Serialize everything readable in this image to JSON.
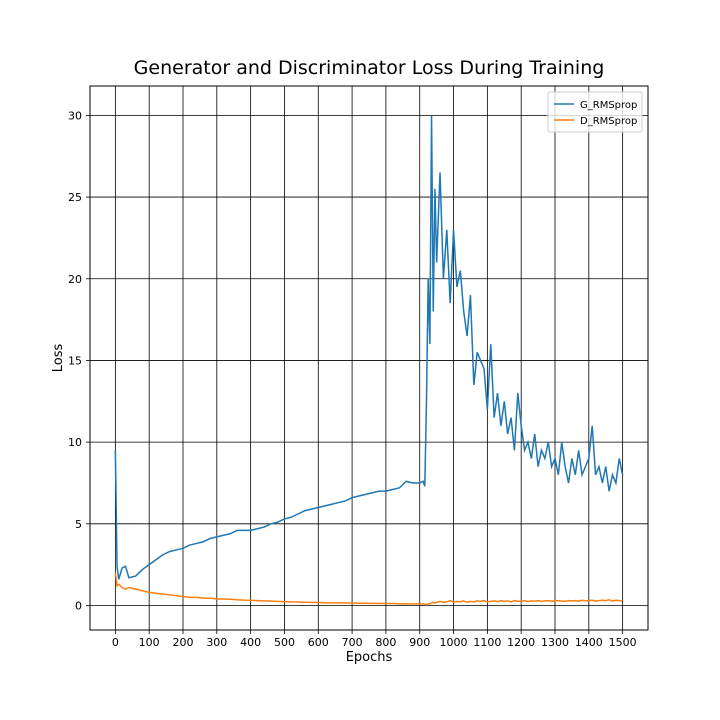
{
  "chart_data": {
    "type": "line",
    "title": "Generator and Discriminator Loss During Training",
    "x_label": "Epochs",
    "y_label": "Loss",
    "x": [
      0,
      5,
      10,
      20,
      30,
      40,
      60,
      80,
      100,
      120,
      140,
      160,
      180,
      200,
      220,
      240,
      260,
      280,
      300,
      320,
      340,
      360,
      380,
      400,
      420,
      440,
      460,
      480,
      500,
      520,
      540,
      560,
      580,
      600,
      620,
      640,
      660,
      680,
      700,
      720,
      740,
      760,
      780,
      800,
      820,
      840,
      860,
      880,
      900,
      910,
      915,
      920,
      925,
      930,
      935,
      940,
      945,
      950,
      960,
      970,
      980,
      990,
      1000,
      1010,
      1020,
      1030,
      1040,
      1050,
      1060,
      1070,
      1080,
      1090,
      1100,
      1110,
      1120,
      1130,
      1140,
      1150,
      1160,
      1170,
      1180,
      1190,
      1200,
      1210,
      1220,
      1230,
      1240,
      1250,
      1260,
      1270,
      1280,
      1290,
      1300,
      1310,
      1320,
      1330,
      1340,
      1350,
      1360,
      1370,
      1380,
      1390,
      1400,
      1410,
      1420,
      1430,
      1440,
      1450,
      1460,
      1470,
      1480,
      1490,
      1500
    ],
    "series": [
      {
        "name": "G_RMSprop",
        "color": "#1f77b4",
        "values": [
          9.5,
          2.4,
          1.6,
          2.3,
          2.4,
          1.7,
          1.8,
          2.2,
          2.5,
          2.8,
          3.1,
          3.3,
          3.4,
          3.5,
          3.7,
          3.8,
          3.9,
          4.1,
          4.2,
          4.3,
          4.4,
          4.6,
          4.6,
          4.6,
          4.7,
          4.8,
          5.0,
          5.1,
          5.3,
          5.4,
          5.6,
          5.8,
          5.9,
          6.0,
          6.1,
          6.2,
          6.3,
          6.4,
          6.6,
          6.7,
          6.8,
          6.9,
          7.0,
          7.0,
          7.1,
          7.2,
          7.6,
          7.5,
          7.5,
          7.6,
          7.3,
          12.5,
          20.0,
          16.0,
          30.0,
          18.0,
          25.5,
          21.0,
          26.5,
          20.0,
          23.0,
          18.5,
          23.0,
          19.5,
          20.5,
          18.0,
          16.5,
          19.0,
          13.5,
          15.5,
          15.0,
          14.5,
          12.0,
          16.0,
          11.5,
          13.0,
          11.0,
          12.5,
          10.5,
          11.5,
          9.5,
          13.0,
          11.0,
          9.5,
          10.0,
          9.0,
          10.5,
          8.5,
          9.5,
          9.0,
          10.0,
          8.5,
          9.0,
          8.0,
          10.0,
          8.5,
          7.5,
          9.0,
          8.0,
          9.5,
          8.0,
          8.5,
          9.0,
          11.0,
          8.0,
          8.5,
          7.5,
          8.5,
          7.0,
          8.0,
          7.5,
          9.0,
          8.0
        ]
      },
      {
        "name": "D_RMSprop",
        "color": "#ff7f0e",
        "values": [
          2.0,
          1.2,
          1.3,
          1.1,
          1.0,
          1.1,
          1.0,
          0.9,
          0.8,
          0.75,
          0.7,
          0.65,
          0.6,
          0.55,
          0.5,
          0.5,
          0.45,
          0.45,
          0.4,
          0.4,
          0.38,
          0.35,
          0.33,
          0.32,
          0.3,
          0.28,
          0.27,
          0.25,
          0.24,
          0.22,
          0.21,
          0.2,
          0.19,
          0.18,
          0.17,
          0.16,
          0.16,
          0.15,
          0.15,
          0.14,
          0.14,
          0.13,
          0.13,
          0.12,
          0.12,
          0.11,
          0.1,
          0.1,
          0.1,
          0.1,
          0.08,
          0.05,
          0.1,
          0.12,
          0.15,
          0.2,
          0.15,
          0.2,
          0.25,
          0.2,
          0.22,
          0.3,
          0.2,
          0.25,
          0.22,
          0.28,
          0.2,
          0.25,
          0.22,
          0.28,
          0.25,
          0.3,
          0.22,
          0.25,
          0.28,
          0.24,
          0.3,
          0.25,
          0.28,
          0.22,
          0.3,
          0.26,
          0.25,
          0.3,
          0.24,
          0.28,
          0.27,
          0.3,
          0.25,
          0.28,
          0.3,
          0.26,
          0.29,
          0.3,
          0.27,
          0.25,
          0.3,
          0.28,
          0.3,
          0.26,
          0.32,
          0.28,
          0.3,
          0.33,
          0.27,
          0.3,
          0.32,
          0.3,
          0.35,
          0.28,
          0.32,
          0.3,
          0.28
        ]
      }
    ],
    "xlim": [
      -75,
      1575
    ],
    "ylim": [
      -1.5,
      31.8
    ],
    "xticks": [
      0,
      100,
      200,
      300,
      400,
      500,
      600,
      700,
      800,
      900,
      1000,
      1100,
      1200,
      1300,
      1400,
      1500
    ],
    "yticks": [
      0,
      5,
      10,
      15,
      20,
      25,
      30
    ],
    "grid": true,
    "legend": "upper right"
  }
}
